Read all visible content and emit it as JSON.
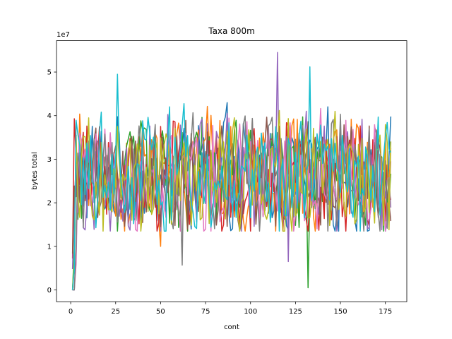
{
  "chart_data": {
    "type": "line",
    "title": "Taxa 800m",
    "xlabel": "cont",
    "ylabel": "bytes total",
    "offset_label": "1e7",
    "xlim": [
      -7.9,
      186.9
    ],
    "ylim": [
      -0.27,
      5.72
    ],
    "y_scale_factor": 10000000,
    "xticks": [
      0,
      25,
      50,
      75,
      100,
      125,
      150,
      175
    ],
    "yticks": [
      0,
      1,
      2,
      3,
      4,
      5
    ],
    "grid": false,
    "legend": "none",
    "series_colors": [
      "#1f77b4",
      "#ff7f0e",
      "#2ca02c",
      "#d62728",
      "#9467bd",
      "#8c564b",
      "#e377c2",
      "#7f7f7f",
      "#bcbd22",
      "#17becf"
    ],
    "series_note": "ten unlabeled noisy series over x = 1..178, each ramping from 0 near x=1-3 to ~2.5e7 and fluctuating between ~1.3e7 and ~4.8e7; notable extremes listed in features",
    "features": [
      {
        "series": 4,
        "x": 115,
        "y": 5.45
      },
      {
        "series": 9,
        "x": 26,
        "y": 4.95
      },
      {
        "series": 9,
        "x": 133,
        "y": 5.12
      },
      {
        "series": 2,
        "x": 132,
        "y": 0.05
      },
      {
        "series": 7,
        "x": 62,
        "y": 0.57
      },
      {
        "series": 1,
        "x": 50,
        "y": 1.0
      },
      {
        "series": 4,
        "x": 121,
        "y": 0.65
      }
    ]
  }
}
